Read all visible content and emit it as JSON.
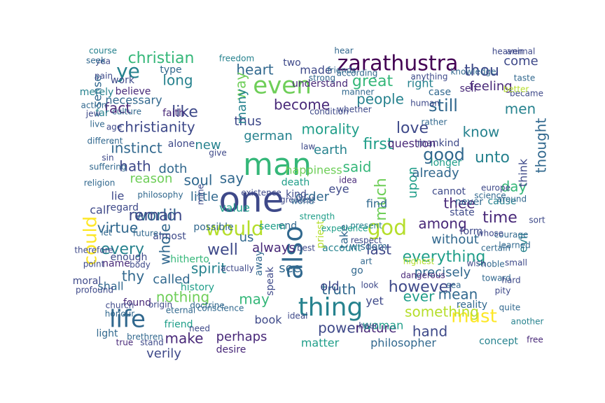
{
  "palette": [
    "#440154",
    "#482878",
    "#3e4989",
    "#31688e",
    "#26828e",
    "#1f9e89",
    "#35b779",
    "#6ece58",
    "#b5de2b",
    "#fde725"
  ],
  "words": [
    {
      "t": "one",
      "c": 2
    },
    {
      "t": "man",
      "c": 6
    },
    {
      "t": "thing",
      "c": 4
    },
    {
      "t": "also",
      "c": 3
    },
    {
      "t": "zarathustra",
      "c": 0
    },
    {
      "t": "even",
      "c": 7
    },
    {
      "t": "life",
      "c": 3
    },
    {
      "t": "god",
      "c": 8
    },
    {
      "t": "would",
      "c": 8
    },
    {
      "t": "must",
      "c": 9
    },
    {
      "t": "could",
      "c": 9
    },
    {
      "t": "ye",
      "c": 4
    },
    {
      "t": "christian",
      "c": 6
    },
    {
      "t": "heart",
      "c": 3
    },
    {
      "t": "great",
      "c": 6
    },
    {
      "t": "people",
      "c": 4
    },
    {
      "t": "still",
      "c": 3
    },
    {
      "t": "love",
      "c": 2
    },
    {
      "t": "know",
      "c": 4
    },
    {
      "t": "good",
      "c": 3
    },
    {
      "t": "instinct",
      "c": 3
    },
    {
      "t": "christianity",
      "c": 2
    },
    {
      "t": "fact",
      "c": 1
    },
    {
      "t": "like",
      "c": 2
    },
    {
      "t": "world",
      "c": 3
    },
    {
      "t": "say",
      "c": 3
    },
    {
      "t": "virtue",
      "c": 3
    },
    {
      "t": "every",
      "c": 4
    },
    {
      "t": "whole",
      "c": 3
    },
    {
      "t": "spirit",
      "c": 4
    },
    {
      "t": "everything",
      "c": 5
    },
    {
      "t": "however",
      "c": 2
    },
    {
      "t": "truth",
      "c": 3
    },
    {
      "t": "power",
      "c": 2
    },
    {
      "t": "perhaps",
      "c": 1
    },
    {
      "t": "make",
      "c": 1
    },
    {
      "t": "hand",
      "c": 2
    },
    {
      "t": "something",
      "c": 8
    },
    {
      "t": "time",
      "c": 1
    },
    {
      "t": "unto",
      "c": 4
    },
    {
      "t": "thou",
      "c": 2
    },
    {
      "t": "men",
      "c": 4
    },
    {
      "t": "way",
      "c": 7
    },
    {
      "t": "long",
      "c": 4
    },
    {
      "t": "thus",
      "c": 2
    },
    {
      "t": "become",
      "c": 1
    },
    {
      "t": "hath",
      "c": 2
    },
    {
      "t": "soul",
      "c": 3
    },
    {
      "t": "first",
      "c": 5
    },
    {
      "t": "much",
      "c": 7
    },
    {
      "t": "upon",
      "c": 5
    },
    {
      "t": "thee",
      "c": 1
    },
    {
      "t": "last",
      "c": 2
    },
    {
      "t": "always",
      "c": 1
    },
    {
      "t": "ever",
      "c": 5
    },
    {
      "t": "see",
      "c": 3
    },
    {
      "t": "well",
      "c": 2
    },
    {
      "t": "thy",
      "c": 3
    },
    {
      "t": "may",
      "c": 6
    },
    {
      "t": "us",
      "c": 3
    },
    {
      "t": "mean",
      "c": 3
    },
    {
      "t": "nothing",
      "c": 7
    },
    {
      "t": "verily",
      "c": 2
    },
    {
      "t": "morality",
      "c": 5
    },
    {
      "t": "german",
      "c": 4
    },
    {
      "t": "earth",
      "c": 4
    },
    {
      "t": "little",
      "c": 3
    },
    {
      "t": "order",
      "c": 3
    },
    {
      "t": "new",
      "c": 4
    },
    {
      "t": "reason",
      "c": 7
    },
    {
      "t": "day",
      "c": 6
    },
    {
      "t": "thought",
      "c": 3
    },
    {
      "t": "already",
      "c": 3
    },
    {
      "t": "among",
      "c": 1
    },
    {
      "t": "without",
      "c": 3
    },
    {
      "t": "precisely",
      "c": 3
    },
    {
      "t": "called",
      "c": 3
    },
    {
      "t": "book",
      "c": 2
    },
    {
      "t": "nature",
      "c": 1
    },
    {
      "t": "matter",
      "c": 5
    },
    {
      "t": "philosopher",
      "c": 3
    },
    {
      "t": "old",
      "c": 2
    },
    {
      "t": "speak",
      "c": 2
    },
    {
      "t": "woman",
      "c": 5
    },
    {
      "t": "feeling",
      "c": 1
    },
    {
      "t": "come",
      "c": 2
    },
    {
      "t": "right",
      "c": 4
    },
    {
      "t": "made",
      "c": 2
    },
    {
      "t": "said",
      "c": 6
    },
    {
      "t": "many",
      "c": 4
    },
    {
      "t": "sense",
      "c": 3
    },
    {
      "t": "doth",
      "c": 3
    },
    {
      "t": "call",
      "c": 2
    },
    {
      "t": "lie",
      "c": 2
    },
    {
      "t": "value",
      "c": 5
    },
    {
      "t": "shall",
      "c": 3
    },
    {
      "t": "yet",
      "c": 2
    },
    {
      "t": "take",
      "c": 3
    },
    {
      "t": "evil",
      "c": 4
    },
    {
      "t": "happiness",
      "c": 7
    },
    {
      "t": "eye",
      "c": 2
    },
    {
      "t": "find",
      "c": 3
    },
    {
      "t": "longer",
      "c": 5
    },
    {
      "t": "mankind",
      "c": 2
    },
    {
      "t": "question",
      "c": 1
    },
    {
      "t": "self",
      "c": 1
    },
    {
      "t": "case",
      "c": 3
    },
    {
      "t": "think",
      "c": 2
    },
    {
      "t": "cause",
      "c": 4
    },
    {
      "t": "end",
      "c": 3
    },
    {
      "t": "state",
      "c": 2
    },
    {
      "t": "form",
      "c": 2
    },
    {
      "t": "seem",
      "c": 5
    },
    {
      "t": "priest",
      "c": 8
    },
    {
      "t": "death",
      "c": 5
    },
    {
      "t": "kind",
      "c": 2
    },
    {
      "t": "necessary",
      "c": 3
    },
    {
      "t": "far",
      "c": 4
    },
    {
      "t": "faith",
      "c": 1
    },
    {
      "t": "believe",
      "c": 1
    },
    {
      "t": "merely",
      "c": 4
    },
    {
      "t": "work",
      "c": 2
    },
    {
      "t": "type",
      "c": 3
    },
    {
      "t": "understand",
      "c": 1
    },
    {
      "t": "two",
      "c": 2
    },
    {
      "t": "away",
      "c": 3
    },
    {
      "t": "history",
      "c": 5
    },
    {
      "t": "concept",
      "c": 4
    },
    {
      "t": "friend",
      "c": 5
    },
    {
      "t": "found",
      "c": 1
    },
    {
      "t": "light",
      "c": 3
    },
    {
      "t": "desire",
      "c": 1
    },
    {
      "t": "hitherto",
      "c": 6
    },
    {
      "t": "almost",
      "c": 2
    },
    {
      "t": "enough",
      "c": 2
    },
    {
      "t": "regard",
      "c": 2
    },
    {
      "t": "alone",
      "c": 2
    },
    {
      "t": "give",
      "c": 2
    },
    {
      "t": "name",
      "c": 1
    },
    {
      "t": "possible",
      "c": 3
    },
    {
      "t": "moral",
      "c": 2
    },
    {
      "t": "go",
      "c": 3
    },
    {
      "t": "wisdom",
      "c": 3
    },
    {
      "t": "cannot",
      "c": 2
    },
    {
      "t": "never",
      "c": 3
    },
    {
      "t": "reality",
      "c": 3
    },
    {
      "t": "another",
      "c": 4
    },
    {
      "t": "free",
      "c": 1
    },
    {
      "t": "account",
      "c": 4
    },
    {
      "t": "best",
      "c": 2
    },
    {
      "t": "art",
      "c": 3
    },
    {
      "t": "toward",
      "c": 3
    },
    {
      "t": "noble",
      "c": 3
    },
    {
      "t": "present",
      "c": 4
    },
    {
      "t": "law",
      "c": 2
    },
    {
      "t": "idea",
      "c": 1
    },
    {
      "t": "let",
      "c": 3
    },
    {
      "t": "body",
      "c": 2
    },
    {
      "t": "profound",
      "c": 2
    },
    {
      "t": "point",
      "c": 2
    },
    {
      "t": "therefore",
      "c": 2
    },
    {
      "t": "origin",
      "c": 2
    },
    {
      "t": "eternal",
      "c": 3
    },
    {
      "t": "doctrine",
      "c": 3
    },
    {
      "t": "church",
      "c": 2
    },
    {
      "t": "dangerous",
      "c": 1
    },
    {
      "t": "small",
      "c": 2
    },
    {
      "t": "certain",
      "c": 3
    },
    {
      "t": "became",
      "c": 2
    },
    {
      "t": "live",
      "c": 3
    },
    {
      "t": "age",
      "c": 2
    },
    {
      "t": "future",
      "c": 3
    },
    {
      "t": "philosophy",
      "c": 3
    },
    {
      "t": "suffering",
      "c": 3
    },
    {
      "t": "mine",
      "c": 2
    },
    {
      "t": "existence",
      "c": 2
    },
    {
      "t": "need",
      "c": 2
    },
    {
      "t": "true",
      "c": 1
    },
    {
      "t": "conscience",
      "c": 3
    },
    {
      "t": "look",
      "c": 2
    },
    {
      "t": "sort",
      "c": 2
    },
    {
      "t": "rather",
      "c": 3
    },
    {
      "t": "human",
      "c": 2
    },
    {
      "t": "whether",
      "c": 2
    },
    {
      "t": "condition",
      "c": 2
    },
    {
      "t": "knowledge",
      "c": 3
    },
    {
      "t": "taste",
      "c": 3
    },
    {
      "t": "better",
      "c": 8
    },
    {
      "t": "animal",
      "c": 2
    },
    {
      "t": "freedom",
      "c": 4
    },
    {
      "t": "course",
      "c": 4
    },
    {
      "t": "pain",
      "c": 2
    },
    {
      "t": "yea",
      "c": 2
    },
    {
      "t": "culture",
      "c": 3
    },
    {
      "t": "anything",
      "c": 2
    },
    {
      "t": "hour",
      "c": 2
    },
    {
      "t": "sea",
      "c": 3
    },
    {
      "t": "manner",
      "c": 3
    },
    {
      "t": "greatest",
      "c": 2
    },
    {
      "t": "religion",
      "c": 3
    },
    {
      "t": "stand",
      "c": 2
    },
    {
      "t": "highest",
      "c": 8
    },
    {
      "t": "wish",
      "c": 2
    },
    {
      "t": "learned",
      "c": 3
    },
    {
      "t": "courage",
      "c": 3
    },
    {
      "t": "strength",
      "c": 5
    },
    {
      "t": "experience",
      "c": 5
    },
    {
      "t": "ideal",
      "c": 2
    },
    {
      "t": "respect",
      "c": 2
    },
    {
      "t": "brethren",
      "c": 3
    },
    {
      "t": "honour",
      "c": 3
    },
    {
      "t": "hard",
      "c": 2
    },
    {
      "t": "jew",
      "c": 2
    },
    {
      "t": "action",
      "c": 3
    },
    {
      "t": "heaven",
      "c": 2
    },
    {
      "t": "science",
      "c": 3
    },
    {
      "t": "whose",
      "c": 2
    },
    {
      "t": "pity",
      "c": 2
    },
    {
      "t": "europe",
      "c": 2
    },
    {
      "t": "quite",
      "c": 3
    },
    {
      "t": "strong",
      "c": 3
    },
    {
      "t": "according",
      "c": 3
    },
    {
      "t": "hear",
      "c": 3
    },
    {
      "t": "friends",
      "c": 3
    },
    {
      "t": "actually",
      "c": 2
    },
    {
      "t": "around",
      "c": 3
    },
    {
      "t": "different",
      "c": 3
    },
    {
      "t": "sin",
      "c": 2
    },
    {
      "t": "seek",
      "c": 3
    },
    {
      "t": "remain",
      "c": 2
    },
    {
      "t": "world",
      "c": 3
    }
  ]
}
